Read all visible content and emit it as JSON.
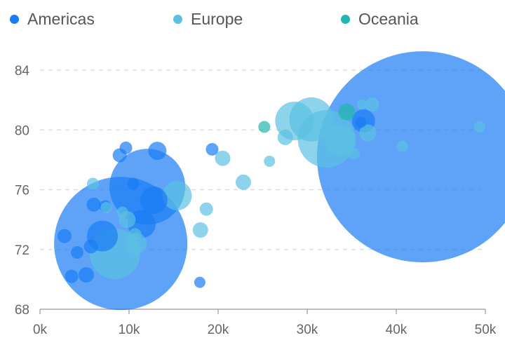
{
  "legend": [
    {
      "name": "Americas",
      "color": "#1a7cf5"
    },
    {
      "name": "Europe",
      "color": "#5bc0e2"
    },
    {
      "name": "Oceania",
      "color": "#21b7ad"
    }
  ],
  "chart_data": {
    "type": "scatter",
    "subtype": "bubble",
    "xlim": [
      0,
      50000
    ],
    "ylim": [
      68,
      84
    ],
    "x_ticks": [
      {
        "value": 0,
        "label": "0k"
      },
      {
        "value": 10000,
        "label": "10k"
      },
      {
        "value": 20000,
        "label": "20k"
      },
      {
        "value": 30000,
        "label": "30k"
      },
      {
        "value": 40000,
        "label": "40k"
      },
      {
        "value": 50000,
        "label": "50k"
      }
    ],
    "y_ticks": [
      {
        "value": 68,
        "label": "68"
      },
      {
        "value": 72,
        "label": "72"
      },
      {
        "value": 76,
        "label": "76"
      },
      {
        "value": 80,
        "label": "80"
      },
      {
        "value": 84,
        "label": "84"
      }
    ],
    "grid": "horizontal dashed",
    "legend_position": "top",
    "series": [
      {
        "name": "Americas",
        "color": "#1a7cf5",
        "points": [
          {
            "x": 42951,
            "y": 78.2,
            "size": 301
          },
          {
            "x": 9065,
            "y": 72.4,
            "size": 190
          },
          {
            "x": 12057,
            "y": 76.2,
            "size": 108
          },
          {
            "x": 7008,
            "y": 72.9,
            "size": 44
          },
          {
            "x": 11416,
            "y": 73.7,
            "size": 40
          },
          {
            "x": 12779,
            "y": 75.3,
            "size": 39
          },
          {
            "x": 36319,
            "y": 80.6,
            "size": 33
          },
          {
            "x": 13172,
            "y": 78.6,
            "size": 26
          },
          {
            "x": 5728,
            "y": 72.2,
            "size": 20
          },
          {
            "x": 8948,
            "y": 78.3,
            "size": 20
          },
          {
            "x": 6025,
            "y": 75.0,
            "size": 20
          },
          {
            "x": 2749,
            "y": 72.9,
            "size": 20
          },
          {
            "x": 3548,
            "y": 70.2,
            "size": 19
          },
          {
            "x": 5186,
            "y": 70.3,
            "size": 22
          },
          {
            "x": 4173,
            "y": 71.8,
            "size": 18
          },
          {
            "x": 9646,
            "y": 78.8,
            "size": 18
          },
          {
            "x": 19329,
            "y": 78.7,
            "size": 18
          },
          {
            "x": 10461,
            "y": 76.4,
            "size": 17
          },
          {
            "x": 7321,
            "y": 74.9,
            "size": 17
          },
          {
            "x": 17946,
            "y": 69.8,
            "size": 16
          },
          {
            "x": 36000,
            "y": 80.5,
            "size": 16
          }
        ]
      },
      {
        "name": "Europe",
        "color": "#5bc0e2",
        "points": [
          {
            "x": 8417,
            "y": 71.7,
            "size": 72
          },
          {
            "x": 32170,
            "y": 79.4,
            "size": 82
          },
          {
            "x": 30470,
            "y": 80.7,
            "size": 63
          },
          {
            "x": 28570,
            "y": 80.6,
            "size": 55
          },
          {
            "x": 33692,
            "y": 79.3,
            "size": 44
          },
          {
            "x": 15390,
            "y": 75.6,
            "size": 42
          },
          {
            "x": 10808,
            "y": 72.4,
            "size": 30
          },
          {
            "x": 9787,
            "y": 74.0,
            "size": 24
          },
          {
            "x": 18008,
            "y": 73.3,
            "size": 22
          },
          {
            "x": 22833,
            "y": 76.5,
            "size": 22
          },
          {
            "x": 20509,
            "y": 78.1,
            "size": 22
          },
          {
            "x": 27538,
            "y": 79.5,
            "size": 22
          },
          {
            "x": 36800,
            "y": 79.8,
            "size": 24
          },
          {
            "x": 37300,
            "y": 81.7,
            "size": 20
          },
          {
            "x": 18678,
            "y": 74.7,
            "size": 19
          },
          {
            "x": 5937,
            "y": 76.4,
            "size": 17
          },
          {
            "x": 9253,
            "y": 74.5,
            "size": 16
          },
          {
            "x": 7446,
            "y": 74.8,
            "size": 16
          },
          {
            "x": 10680,
            "y": 73.0,
            "size": 18
          },
          {
            "x": 25768,
            "y": 77.9,
            "size": 16
          },
          {
            "x": 40676,
            "y": 78.9,
            "size": 16
          },
          {
            "x": 49357,
            "y": 80.2,
            "size": 16
          },
          {
            "x": 35278,
            "y": 78.4,
            "size": 16
          },
          {
            "x": 36126,
            "y": 81.7,
            "size": 14
          }
        ]
      },
      {
        "name": "Oceania",
        "color": "#21b7ad",
        "points": [
          {
            "x": 34435,
            "y": 81.2,
            "size": 24
          },
          {
            "x": 25185,
            "y": 80.2,
            "size": 17
          }
        ]
      }
    ]
  }
}
